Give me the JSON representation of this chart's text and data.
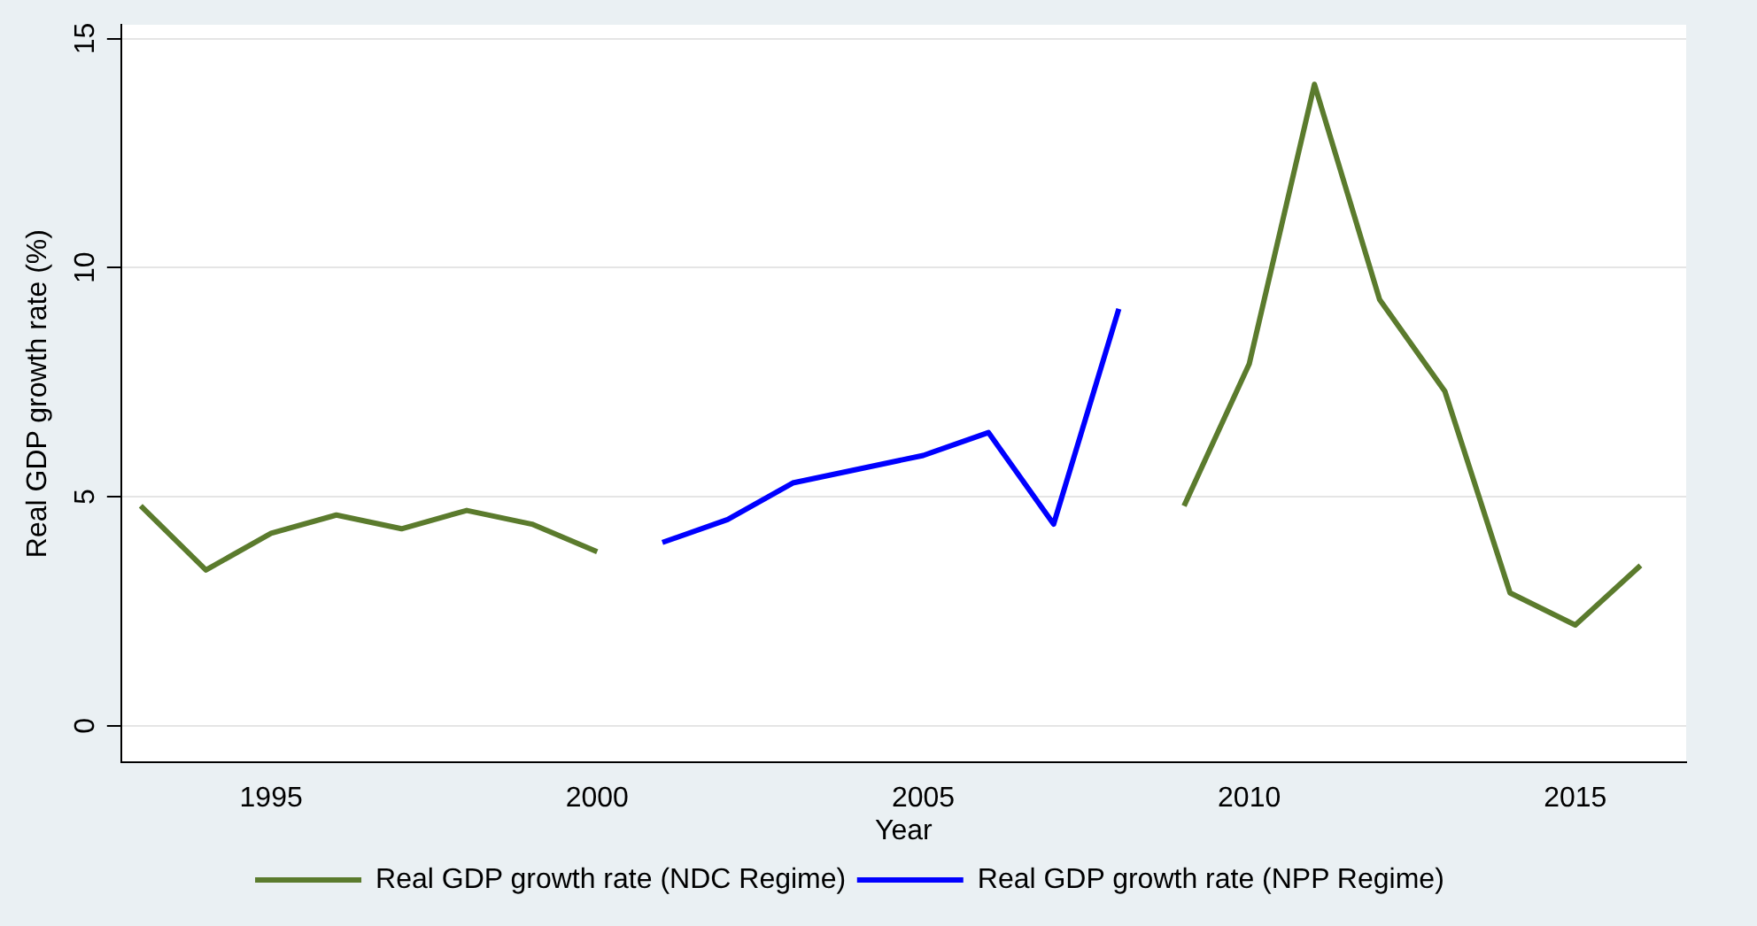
{
  "chart_data": {
    "type": "line",
    "xlabel": "Year",
    "ylabel": "Real GDP growth rate (%)",
    "x": [
      1993,
      1994,
      1995,
      1996,
      1997,
      1998,
      1999,
      2000,
      2001,
      2002,
      2003,
      2004,
      2005,
      2006,
      2007,
      2008,
      2009,
      2010,
      2011,
      2012,
      2013,
      2014,
      2015,
      2016
    ],
    "series": [
      {
        "name": "Real GDP growth rate (NDC Regime)",
        "color": "#5b7b2d",
        "values": [
          4.8,
          3.4,
          4.2,
          4.6,
          4.3,
          4.7,
          4.4,
          3.8,
          null,
          null,
          null,
          null,
          null,
          null,
          null,
          null,
          4.8,
          7.9,
          14.0,
          9.3,
          7.3,
          2.9,
          2.2,
          3.5
        ]
      },
      {
        "name": "Real GDP growth rate (NPP Regime)",
        "color": "#0000ff",
        "values": [
          null,
          null,
          null,
          null,
          null,
          null,
          null,
          null,
          4.0,
          4.5,
          5.3,
          5.6,
          5.9,
          6.4,
          4.4,
          9.1,
          null,
          null,
          null,
          null,
          null,
          null,
          null,
          null
        ]
      }
    ],
    "xlim": [
      1992.7,
      2016.7
    ],
    "xticks": [
      1995,
      2000,
      2005,
      2010,
      2015
    ],
    "ylim": [
      -0.8,
      15.3
    ],
    "yticks": [
      0,
      5,
      10,
      15
    ],
    "grid": "y",
    "legend": "bottom",
    "marker": "none",
    "line_style": "solid"
  }
}
